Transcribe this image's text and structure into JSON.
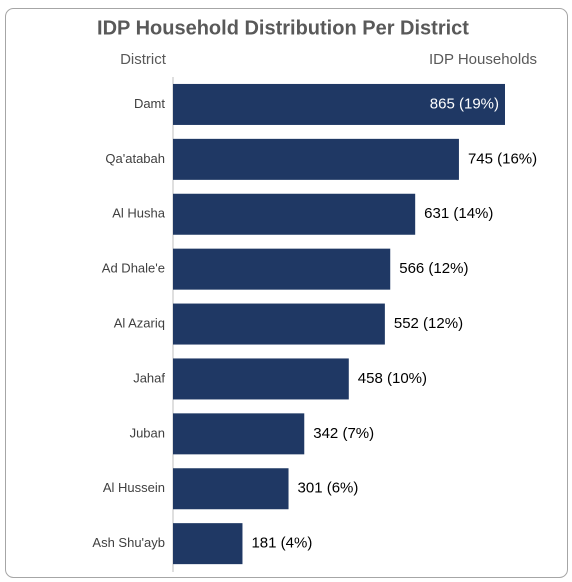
{
  "chart_data": {
    "type": "bar",
    "orientation": "horizontal",
    "title": "IDP Household Distribution Per District",
    "category_header": "District",
    "value_header": "IDP Households",
    "categories": [
      "Damt",
      "Qa'atabah",
      "Al Husha",
      "Ad Dhale'e",
      "Al Azariq",
      "Jahaf",
      "Juban",
      "Al Hussein",
      "Ash Shu'ayb"
    ],
    "values": [
      865,
      745,
      631,
      566,
      552,
      458,
      342,
      301,
      181
    ],
    "value_labels": [
      "865 (19%)",
      "745 (16%)",
      "631 (14%)",
      "566 (12%)",
      "552 (12%)",
      "458 (10%)",
      "342 (7%)",
      "301 (6%)",
      "181 (4%)"
    ],
    "color": "#1f3864"
  }
}
